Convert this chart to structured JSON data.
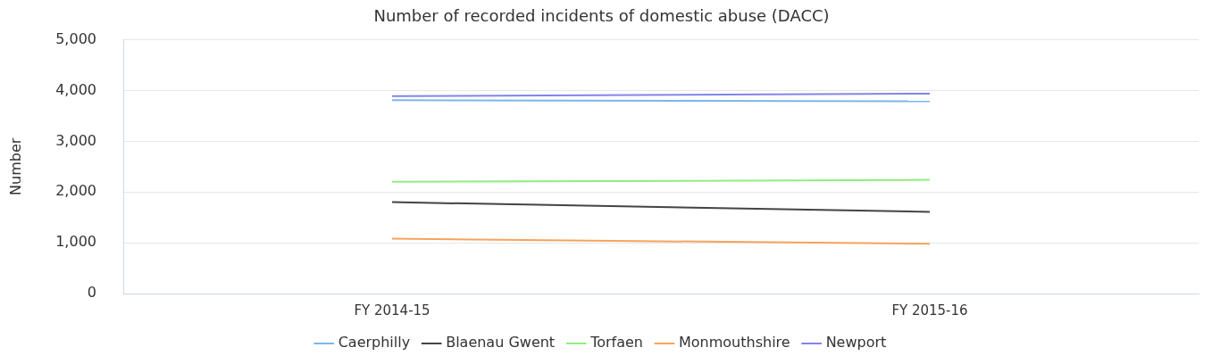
{
  "chart_data": {
    "type": "line",
    "title": "Number of recorded incidents of domestic abuse (DACC)",
    "ylabel": "Number",
    "categories": [
      "FY 2014-15",
      "FY 2015-16"
    ],
    "series": [
      {
        "name": "Caerphilly",
        "color": "#7cb5ec",
        "values": [
          3810,
          3790
        ]
      },
      {
        "name": "Blaenau Gwent",
        "color": "#434348",
        "values": [
          1800,
          1610
        ]
      },
      {
        "name": "Torfaen",
        "color": "#90ed7d",
        "values": [
          2200,
          2240
        ]
      },
      {
        "name": "Monmouthshire",
        "color": "#f7a35c",
        "values": [
          1080,
          980
        ]
      },
      {
        "name": "Newport",
        "color": "#8085e9",
        "values": [
          3890,
          3940
        ]
      }
    ],
    "ylim": [
      0,
      5000
    ],
    "yticks": [
      0,
      {
        "value": 1000,
        "label": "1,000"
      },
      {
        "value": 2000,
        "label": "2,000"
      },
      {
        "value": 3000,
        "label": "3,000"
      },
      {
        "value": 4000,
        "label": "4,000"
      },
      {
        "value": 5000,
        "label": "5,000"
      }
    ],
    "grid": "y",
    "legend": "bottom",
    "marker": "none",
    "line_style": "solid"
  }
}
